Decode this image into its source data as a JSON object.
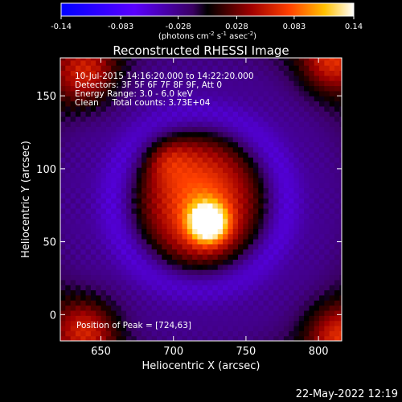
{
  "chart_data": {
    "type": "heatmap",
    "title": "Reconstructed RHESSI Image",
    "xlabel": "Heliocentric X (arcsec)",
    "ylabel": "Heliocentric Y (arcsec)",
    "xlim": [
      622,
      816
    ],
    "ylim": [
      -18,
      176
    ],
    "x_ticks": [
      650,
      700,
      750,
      800
    ],
    "y_ticks": [
      0,
      50,
      100,
      150
    ],
    "colorbar": {
      "min": -0.14,
      "max": 0.14,
      "tick_values": [
        -0.14,
        -0.083,
        -0.028,
        0.028,
        0.083,
        0.14
      ],
      "tick_labels": [
        "-0.14",
        "-0.083",
        "-0.028",
        "0.028",
        "0.083",
        "0.14"
      ],
      "unit_label": "(photons cm-2 s-1 asec-2)",
      "colormap_stops": [
        {
          "pos": 0.0,
          "color": "#0000ff"
        },
        {
          "pos": 0.25,
          "color": "#5a00ff"
        },
        {
          "pos": 0.45,
          "color": "#3a0062"
        },
        {
          "pos": 0.5,
          "color": "#000000"
        },
        {
          "pos": 0.65,
          "color": "#a00000"
        },
        {
          "pos": 0.78,
          "color": "#ff4000"
        },
        {
          "pos": 0.9,
          "color": "#ffc000"
        },
        {
          "pos": 1.0,
          "color": "#ffffff"
        }
      ]
    },
    "annotations": {
      "time_range": "10-Jul-2015 14:16:20.000 to 14:22:20.000",
      "detectors": "Detectors: 3F 5F 6F 7F 8F 9F, Att 0",
      "energy_range": "Energy Range: 3.0 - 6.0 keV",
      "clean_counts": "Clean     Total counts: 3.73E+04",
      "peak_position": "Position of Peak = [724,63]"
    },
    "peak": {
      "x": 724,
      "y": 63
    },
    "grid": false
  },
  "footer": {
    "timestamp": "22-May-2022 12:19"
  },
  "colors": {
    "background": "#000000",
    "text": "#ffffff",
    "negative_halo": "#4a1a8c",
    "source_core": "#ffffff"
  }
}
